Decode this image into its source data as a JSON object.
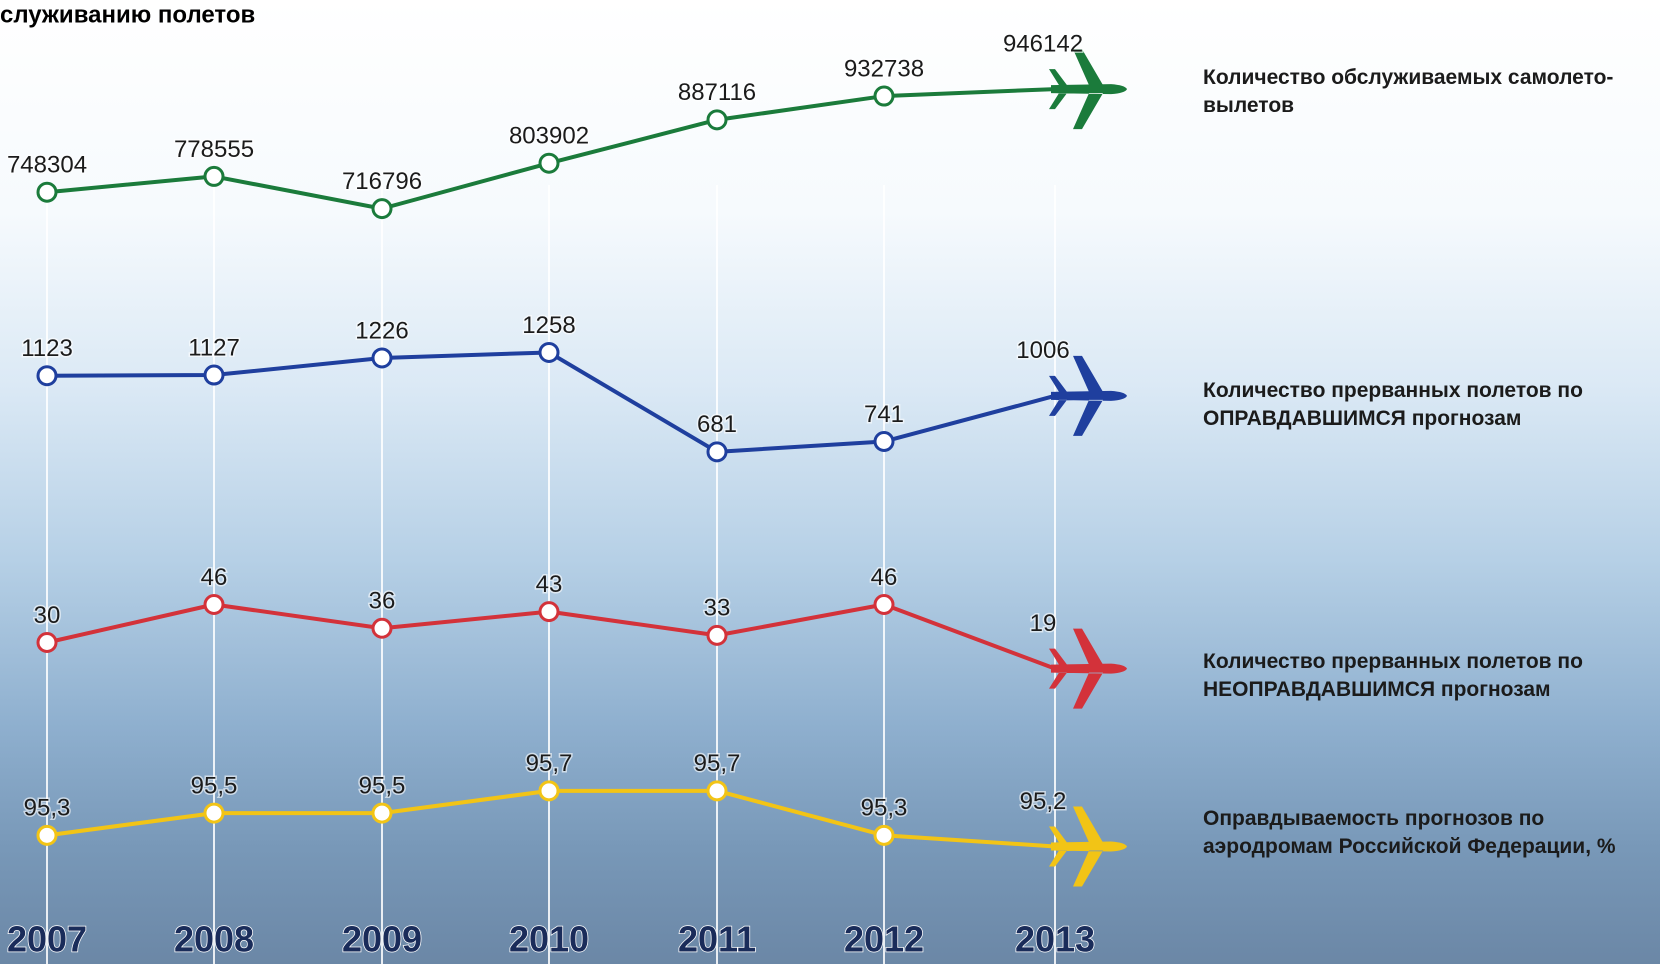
{
  "chart_data": {
    "type": "line",
    "title": "служиванию полетов",
    "categories": [
      "2007",
      "2008",
      "2009",
      "2010",
      "2011",
      "2012",
      "2013"
    ],
    "series": [
      {
        "name": "Количество обслуживаемых самолето-вылетов",
        "color": "#1b7b3b",
        "values": [
          748304,
          778555,
          716796,
          803902,
          887116,
          932738,
          946142
        ],
        "ylim": [
          600000,
          1000000
        ]
      },
      {
        "name": "Количество прерванных полетов по ОПРАВДАВШИМСЯ прогнозам",
        "color": "#1f3f9e",
        "values": [
          1123,
          1127,
          1226,
          1258,
          681,
          741,
          1006
        ],
        "ylim": [
          500,
          1400
        ]
      },
      {
        "name": "Количество прерванных полетов по НЕОПРАВДАВШИМСЯ прогнозам",
        "color": "#d3323a",
        "values": [
          30,
          46,
          36,
          43,
          33,
          46,
          19
        ],
        "ylim": [
          10,
          50
        ]
      },
      {
        "name": "Оправдываемость прогнозов по аэродромам Российской Федерации, %",
        "color": "#f2c416",
        "values": [
          95.3,
          95.5,
          95.5,
          95.7,
          95.7,
          95.3,
          95.2
        ],
        "value_labels": [
          "95,3",
          "95,5",
          "95,5",
          "95,7",
          "95,7",
          "95,3",
          "95,2"
        ],
        "ylim": [
          95,
          96
        ]
      }
    ]
  }
}
